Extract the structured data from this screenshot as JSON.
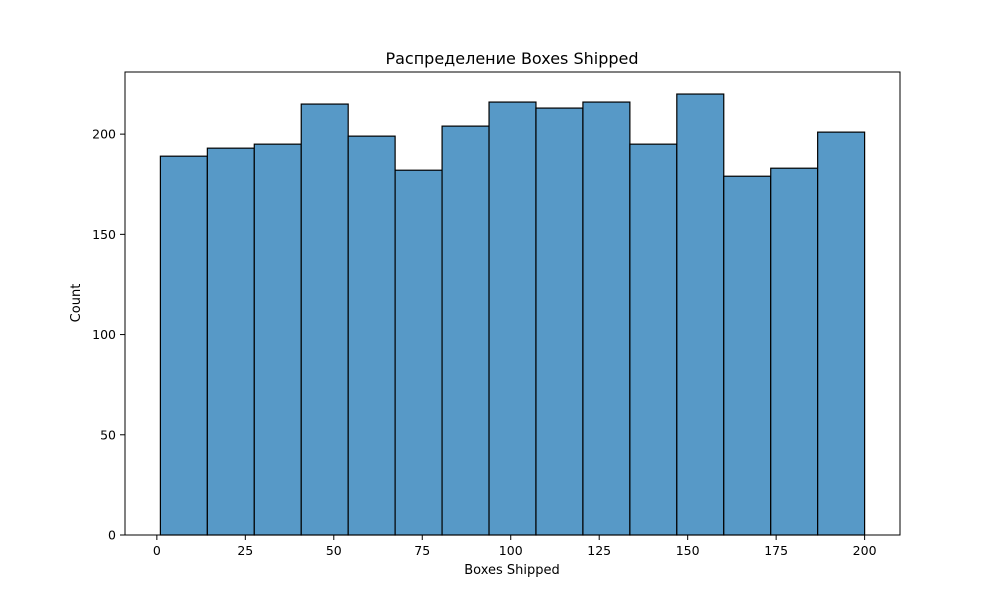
{
  "chart_data": {
    "type": "bar",
    "title": "Распределение Boxes Shipped",
    "xlabel": "Boxes Shipped",
    "ylabel": "Count",
    "bins": [
      {
        "start": 1,
        "end": 14.27,
        "count": 189
      },
      {
        "start": 14.27,
        "end": 27.53,
        "count": 193
      },
      {
        "start": 27.53,
        "end": 40.8,
        "count": 195
      },
      {
        "start": 40.8,
        "end": 54.07,
        "count": 215
      },
      {
        "start": 54.07,
        "end": 67.33,
        "count": 199
      },
      {
        "start": 67.33,
        "end": 80.6,
        "count": 182
      },
      {
        "start": 80.6,
        "end": 93.87,
        "count": 204
      },
      {
        "start": 93.87,
        "end": 107.13,
        "count": 216
      },
      {
        "start": 107.13,
        "end": 120.4,
        "count": 213
      },
      {
        "start": 120.4,
        "end": 133.67,
        "count": 216
      },
      {
        "start": 133.67,
        "end": 146.93,
        "count": 195
      },
      {
        "start": 146.93,
        "end": 160.2,
        "count": 220
      },
      {
        "start": 160.2,
        "end": 173.47,
        "count": 179
      },
      {
        "start": 173.47,
        "end": 186.73,
        "count": 183
      },
      {
        "start": 186.73,
        "end": 200,
        "count": 201
      }
    ],
    "xlim": [
      -9,
      210
    ],
    "ylim": [
      0,
      231
    ],
    "xticks": [
      0,
      25,
      50,
      75,
      100,
      125,
      150,
      175,
      200
    ],
    "yticks": [
      0,
      50,
      100,
      150,
      200
    ],
    "bar_color": "#5799c7",
    "edge_color": "#000000",
    "grid": false
  }
}
